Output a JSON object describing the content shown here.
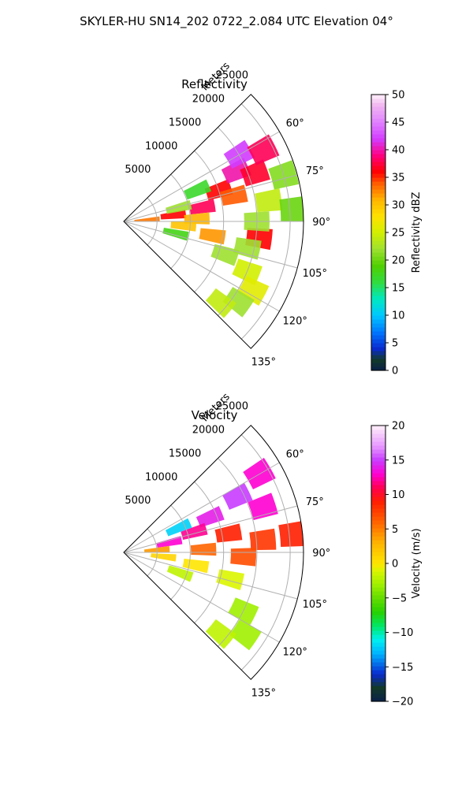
{
  "suptitle": "SKYLER-HU  SN14_202  0722_2.084 UTC Elevation 04°",
  "chart_data": [
    {
      "type": "heatmap",
      "subtype": "polar-sector (PPI radar scan)",
      "title": "Reflectivity",
      "radial_label": "Meters",
      "theta_range_deg": [
        45,
        135
      ],
      "r_range": [
        0,
        27000
      ],
      "r_ticks": [
        5000,
        10000,
        15000,
        20000,
        25000
      ],
      "r_tick_labels": [
        "5000",
        "10000",
        "15000",
        "20000",
        "25000"
      ],
      "theta_ticks": [
        60,
        75,
        90,
        105,
        120,
        135
      ],
      "theta_tick_labels": [
        "60°",
        "75°",
        "90°",
        "105°",
        "120°",
        "135°"
      ],
      "grid": true,
      "colorbar": {
        "label": "Reflectivity dBZ",
        "min": 0,
        "max": 50,
        "ticks": [
          0,
          5,
          10,
          15,
          20,
          25,
          30,
          35,
          40,
          45,
          50
        ],
        "tick_labels": [
          "0",
          "5",
          "10",
          "15",
          "20",
          "25",
          "30",
          "35",
          "40",
          "45",
          "50"
        ],
        "stops": [
          {
            "v": 0,
            "c": "#0a1f4a"
          },
          {
            "v": 2,
            "c": "#123a2a"
          },
          {
            "v": 4,
            "c": "#0a2ad0"
          },
          {
            "v": 7,
            "c": "#0078ff"
          },
          {
            "v": 10,
            "c": "#00c8ff"
          },
          {
            "v": 13,
            "c": "#00e8c0"
          },
          {
            "v": 16,
            "c": "#30dc40"
          },
          {
            "v": 19,
            "c": "#50d000"
          },
          {
            "v": 22,
            "c": "#9ee030"
          },
          {
            "v": 25,
            "c": "#d2f000"
          },
          {
            "v": 28,
            "c": "#ffe100"
          },
          {
            "v": 31,
            "c": "#ffb400"
          },
          {
            "v": 34,
            "c": "#ff5a00"
          },
          {
            "v": 36,
            "c": "#ff0000"
          },
          {
            "v": 39,
            "c": "#ff0080"
          },
          {
            "v": 42,
            "c": "#d23cff"
          },
          {
            "v": 45,
            "c": "#e080ff"
          },
          {
            "v": 48,
            "c": "#f0b4f0"
          },
          {
            "v": 50,
            "c": "#fff0fa"
          }
        ]
      },
      "cells": [
        {
          "theta": 83,
          "r": 7500,
          "v": 36
        },
        {
          "theta": 86,
          "r": 3500,
          "v": 33
        },
        {
          "theta": 80,
          "r": 12000,
          "v": 38
        },
        {
          "theta": 72,
          "r": 15000,
          "v": 36
        },
        {
          "theta": 66,
          "r": 18500,
          "v": 40
        },
        {
          "theta": 70,
          "r": 21000,
          "v": 37
        },
        {
          "theta": 60,
          "r": 20000,
          "v": 42
        },
        {
          "theta": 63,
          "r": 23500,
          "v": 38
        },
        {
          "theta": 77,
          "r": 17000,
          "v": 34
        },
        {
          "theta": 88,
          "r": 11000,
          "v": 31
        },
        {
          "theta": 94,
          "r": 9000,
          "v": 30
        },
        {
          "theta": 99,
          "r": 13500,
          "v": 32
        },
        {
          "theta": 97,
          "r": 20500,
          "v": 36
        },
        {
          "theta": 82,
          "r": 22000,
          "v": 24
        },
        {
          "theta": 90,
          "r": 20000,
          "v": 22
        },
        {
          "theta": 102,
          "r": 19000,
          "v": 22
        },
        {
          "theta": 108,
          "r": 16000,
          "v": 22
        },
        {
          "theta": 112,
          "r": 20000,
          "v": 25
        },
        {
          "theta": 118,
          "r": 22000,
          "v": 26
        },
        {
          "theta": 125,
          "r": 21000,
          "v": 22
        },
        {
          "theta": 130,
          "r": 19000,
          "v": 24
        },
        {
          "theta": 103,
          "r": 8000,
          "v": 18
        },
        {
          "theta": 76,
          "r": 8500,
          "v": 22
        },
        {
          "theta": 67,
          "r": 12000,
          "v": 17
        },
        {
          "theta": 74,
          "r": 25000,
          "v": 21
        },
        {
          "theta": 86,
          "r": 25500,
          "v": 20
        }
      ]
    },
    {
      "type": "heatmap",
      "subtype": "polar-sector (PPI radar scan)",
      "title": "Velocity",
      "radial_label": "Meters",
      "theta_range_deg": [
        45,
        135
      ],
      "r_range": [
        0,
        27000
      ],
      "r_ticks": [
        5000,
        10000,
        15000,
        20000,
        25000
      ],
      "r_tick_labels": [
        "5000",
        "10000",
        "15000",
        "20000",
        "25000"
      ],
      "theta_ticks": [
        60,
        75,
        90,
        105,
        120,
        135
      ],
      "theta_tick_labels": [
        "60°",
        "75°",
        "90°",
        "105°",
        "120°",
        "135°"
      ],
      "grid": true,
      "colorbar": {
        "label": "Velocity (m/s)",
        "min": -20,
        "max": 20,
        "ticks": [
          -20,
          -15,
          -10,
          -5,
          0,
          5,
          10,
          15,
          20
        ],
        "tick_labels": [
          "−20",
          "−15",
          "−10",
          "−5",
          "0",
          "5",
          "10",
          "15",
          "20"
        ],
        "stops": [
          {
            "v": -20,
            "c": "#0a1f4a"
          },
          {
            "v": -18,
            "c": "#123a2a"
          },
          {
            "v": -16,
            "c": "#0a2ad0"
          },
          {
            "v": -13,
            "c": "#00b4ff"
          },
          {
            "v": -11,
            "c": "#00f0f0"
          },
          {
            "v": -9,
            "c": "#00e664"
          },
          {
            "v": -7,
            "c": "#28d200"
          },
          {
            "v": -5,
            "c": "#64dc00"
          },
          {
            "v": -3,
            "c": "#a0f000"
          },
          {
            "v": -1,
            "c": "#dcf500"
          },
          {
            "v": 0,
            "c": "#ffe600"
          },
          {
            "v": 3,
            "c": "#ffb400"
          },
          {
            "v": 6,
            "c": "#ff6400"
          },
          {
            "v": 9,
            "c": "#ff1e00"
          },
          {
            "v": 11,
            "c": "#ff0050"
          },
          {
            "v": 13,
            "c": "#ff00d2"
          },
          {
            "v": 15,
            "c": "#c83cff"
          },
          {
            "v": 17,
            "c": "#e696ff"
          },
          {
            "v": 20,
            "c": "#fff0fa"
          }
        ]
      },
      "cells": [
        {
          "theta": 64,
          "r": 19000,
          "v": 15
        },
        {
          "theta": 68,
          "r": 14000,
          "v": 14
        },
        {
          "theta": 60,
          "r": 23500,
          "v": 13
        },
        {
          "theta": 74,
          "r": 11000,
          "v": 12
        },
        {
          "theta": 78,
          "r": 7000,
          "v": 13
        },
        {
          "theta": 72,
          "r": 22000,
          "v": 13
        },
        {
          "theta": 80,
          "r": 16000,
          "v": 9
        },
        {
          "theta": 85,
          "r": 21000,
          "v": 8
        },
        {
          "theta": 88,
          "r": 12000,
          "v": 6
        },
        {
          "theta": 92,
          "r": 18000,
          "v": 7
        },
        {
          "theta": 86,
          "r": 5000,
          "v": 4
        },
        {
          "theta": 96,
          "r": 6000,
          "v": 1
        },
        {
          "theta": 100,
          "r": 11000,
          "v": 0
        },
        {
          "theta": 104,
          "r": 16500,
          "v": -1
        },
        {
          "theta": 110,
          "r": 9000,
          "v": -2
        },
        {
          "theta": 116,
          "r": 20000,
          "v": -3
        },
        {
          "theta": 124,
          "r": 22000,
          "v": -3
        },
        {
          "theta": 130,
          "r": 19000,
          "v": -2
        },
        {
          "theta": 66,
          "r": 9000,
          "v": -12
        },
        {
          "theta": 84,
          "r": 25500,
          "v": 9
        }
      ]
    }
  ]
}
